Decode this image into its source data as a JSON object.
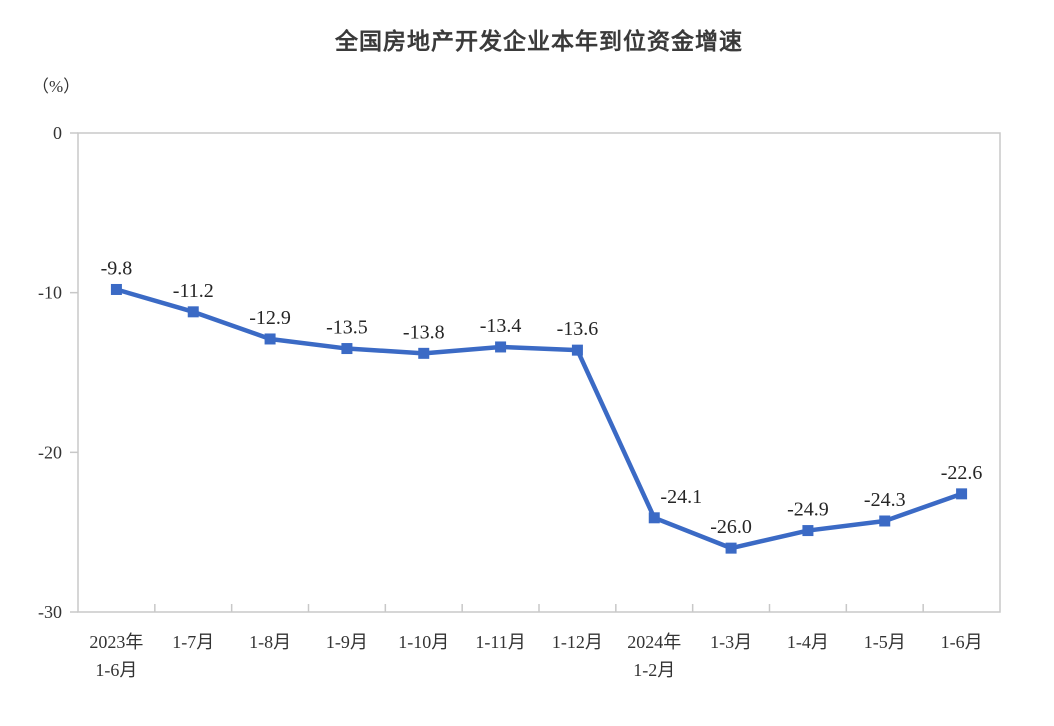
{
  "chart_data": {
    "type": "line",
    "title": "全国房地产开发企业本年到位资金增速",
    "unit_label": "（%）",
    "categories": [
      "2023年\n1-6月",
      "1-7月",
      "1-8月",
      "1-9月",
      "1-10月",
      "1-11月",
      "1-12月",
      "2024年\n1-2月",
      "1-3月",
      "1-4月",
      "1-5月",
      "1-6月"
    ],
    "values": [
      -9.8,
      -11.2,
      -12.9,
      -13.5,
      -13.8,
      -13.4,
      -13.6,
      -24.1,
      -26.0,
      -24.9,
      -24.3,
      -22.6
    ],
    "point_labels": [
      "-9.8",
      "-11.2",
      "-12.9",
      "-13.5",
      "-13.8",
      "-13.4",
      "-13.6",
      "-24.1",
      "-26.0",
      "-24.9",
      "-24.3",
      "-22.6"
    ],
    "y_ticks": [
      0,
      -10,
      -20,
      -30
    ],
    "ylim": [
      -30,
      0
    ],
    "grid": false,
    "legend_position": "none",
    "marker": "square",
    "line_color": "#3B6AC5",
    "axis_color": "#C8C8C8",
    "tick_label_color": "#333333",
    "point_label_color": "#262626",
    "label_dx_hints": [
      0,
      0,
      0,
      0,
      0,
      0,
      0,
      27,
      0,
      0,
      0,
      0
    ]
  }
}
